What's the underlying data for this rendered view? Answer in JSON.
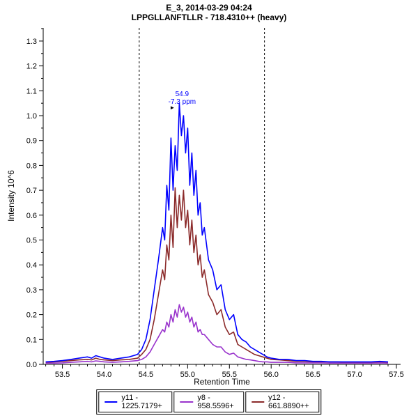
{
  "chart_data": {
    "type": "line",
    "title": "E_3, 2014-03-29 04:24",
    "subtitle": "LPPGLLANFTLLR - 718.4310++ (heavy)",
    "xlabel": "Retention Time",
    "ylabel": "Intensity 10^6",
    "xlim": [
      53.27,
      57.55
    ],
    "ylim": [
      0,
      1.353
    ],
    "x_ticks": [
      53.5,
      54.0,
      54.5,
      55.0,
      55.5,
      56.0,
      56.5,
      57.0,
      57.5
    ],
    "y_ticks": [
      0.0,
      0.1,
      0.2,
      0.3,
      0.4,
      0.5,
      0.6,
      0.7,
      0.8,
      0.9,
      1.0,
      1.1,
      1.2,
      1.3
    ],
    "grid": false,
    "legend_position": "bottom",
    "integration_boundaries": [
      54.42,
      55.92
    ],
    "boundary_line_color": "#000000",
    "annotation": {
      "peak_rt": "54.9",
      "mass_error": "-7.3 ppm",
      "x": 54.9,
      "y": 1.05,
      "color": "#0000ff",
      "arrow_glyph": "►"
    },
    "x": [
      53.3,
      53.4,
      53.5,
      53.6,
      53.7,
      53.8,
      53.85,
      53.9,
      53.95,
      54.0,
      54.1,
      54.2,
      54.3,
      54.4,
      54.45,
      54.5,
      54.55,
      54.6,
      54.65,
      54.7,
      54.725,
      54.75,
      54.775,
      54.8,
      54.825,
      54.85,
      54.875,
      54.9,
      54.925,
      54.95,
      54.975,
      55.0,
      55.025,
      55.05,
      55.075,
      55.1,
      55.125,
      55.15,
      55.175,
      55.2,
      55.25,
      55.3,
      55.35,
      55.4,
      55.45,
      55.5,
      55.55,
      55.6,
      55.65,
      55.7,
      55.75,
      55.8,
      55.85,
      55.9,
      55.95,
      56.0,
      56.1,
      56.2,
      56.3,
      56.4,
      56.5,
      56.6,
      56.7,
      56.8,
      56.9,
      57.0,
      57.1,
      57.2,
      57.3,
      57.4
    ],
    "series": [
      {
        "name": "y11 - 1225.7179+",
        "color": "#0000ff",
        "values": [
          0.01,
          0.012,
          0.015,
          0.02,
          0.025,
          0.03,
          0.025,
          0.035,
          0.03,
          0.025,
          0.02,
          0.025,
          0.03,
          0.04,
          0.06,
          0.1,
          0.18,
          0.3,
          0.42,
          0.55,
          0.5,
          0.72,
          0.62,
          0.91,
          0.7,
          0.88,
          0.78,
          1.05,
          0.92,
          1.0,
          0.85,
          0.95,
          0.72,
          0.85,
          0.68,
          0.78,
          0.6,
          0.65,
          0.52,
          0.55,
          0.42,
          0.38,
          0.3,
          0.32,
          0.22,
          0.18,
          0.2,
          0.12,
          0.1,
          0.09,
          0.07,
          0.06,
          0.05,
          0.04,
          0.03,
          0.025,
          0.02,
          0.02,
          0.015,
          0.015,
          0.012,
          0.012,
          0.01,
          0.01,
          0.01,
          0.01,
          0.01,
          0.01,
          0.012,
          0.01
        ]
      },
      {
        "name": "y8 - 958.5596+",
        "color": "#9933cc",
        "values": [
          0.005,
          0.005,
          0.006,
          0.008,
          0.01,
          0.012,
          0.01,
          0.014,
          0.012,
          0.01,
          0.008,
          0.01,
          0.012,
          0.015,
          0.02,
          0.03,
          0.05,
          0.08,
          0.11,
          0.14,
          0.13,
          0.17,
          0.15,
          0.2,
          0.17,
          0.22,
          0.19,
          0.24,
          0.21,
          0.23,
          0.19,
          0.21,
          0.17,
          0.19,
          0.15,
          0.17,
          0.13,
          0.14,
          0.12,
          0.12,
          0.1,
          0.08,
          0.07,
          0.07,
          0.05,
          0.04,
          0.045,
          0.03,
          0.025,
          0.02,
          0.018,
          0.015,
          0.012,
          0.01,
          0.01,
          0.008,
          0.008,
          0.008,
          0.006,
          0.006,
          0.006,
          0.006,
          0.005,
          0.005,
          0.005,
          0.005,
          0.005,
          0.005,
          0.006,
          0.005
        ]
      },
      {
        "name": "y12 - 661.8890++",
        "color": "#8b2a2a",
        "values": [
          0.008,
          0.01,
          0.012,
          0.015,
          0.018,
          0.02,
          0.018,
          0.025,
          0.02,
          0.018,
          0.015,
          0.018,
          0.02,
          0.025,
          0.04,
          0.06,
          0.1,
          0.18,
          0.28,
          0.38,
          0.34,
          0.48,
          0.42,
          0.6,
          0.47,
          0.71,
          0.55,
          0.68,
          0.58,
          0.7,
          0.55,
          0.62,
          0.48,
          0.58,
          0.45,
          0.52,
          0.4,
          0.44,
          0.35,
          0.38,
          0.28,
          0.25,
          0.2,
          0.22,
          0.15,
          0.12,
          0.13,
          0.08,
          0.07,
          0.06,
          0.05,
          0.04,
          0.035,
          0.03,
          0.025,
          0.02,
          0.018,
          0.015,
          0.012,
          0.012,
          0.01,
          0.01,
          0.01,
          0.01,
          0.008,
          0.008,
          0.008,
          0.008,
          0.01,
          0.008
        ]
      }
    ]
  }
}
